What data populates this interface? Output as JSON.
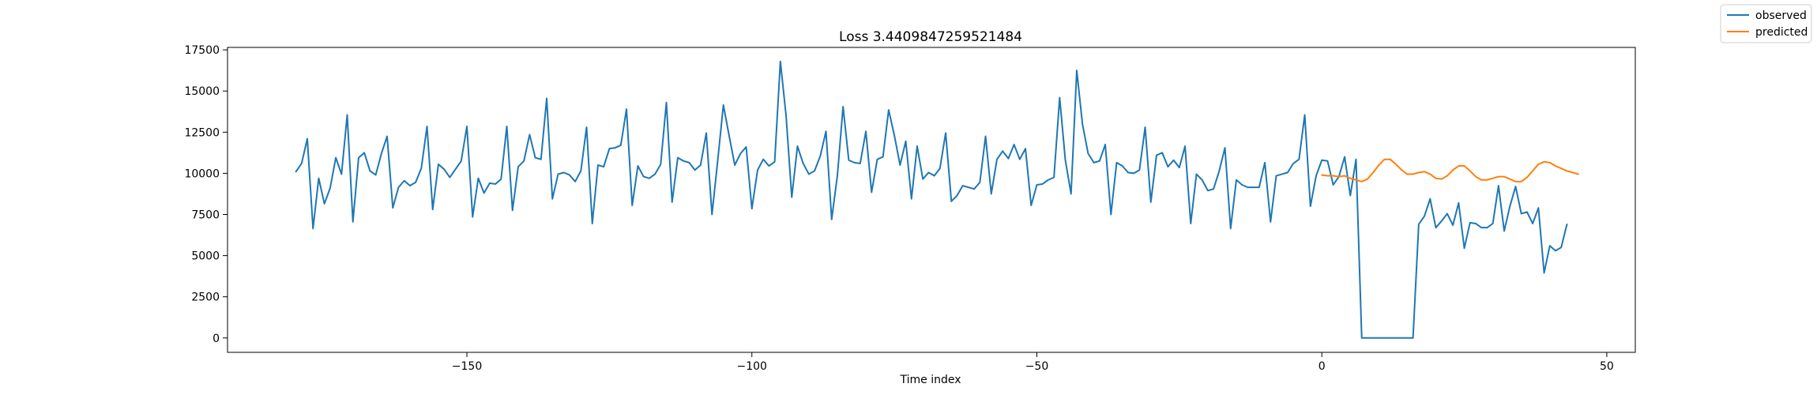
{
  "chart_data": {
    "type": "line",
    "title": "Loss 3.4409847259521484",
    "xlabel": "Time index",
    "ylabel": "",
    "xlim": [
      -192,
      55
    ],
    "ylim": [
      -875,
      17650
    ],
    "xticks": [
      -150,
      -100,
      -50,
      0,
      50
    ],
    "xtick_labels": [
      "−150",
      "−100",
      "−50",
      "0",
      "50"
    ],
    "yticks": [
      0,
      2500,
      5000,
      7500,
      10000,
      12500,
      15000,
      17500
    ],
    "ytick_labels": [
      "0",
      "2500",
      "5000",
      "7500",
      "10000",
      "12500",
      "15000",
      "17500"
    ],
    "grid": false,
    "legend_position": "upper-right-outside",
    "series": [
      {
        "name": "observed",
        "color": "#1f77b4",
        "x_start": -180,
        "values": [
          10100,
          10600,
          12100,
          6650,
          9700,
          8150,
          9100,
          10950,
          9950,
          13550,
          7050,
          10950,
          11250,
          10150,
          9900,
          11200,
          12250,
          7900,
          9150,
          9550,
          9250,
          9450,
          10300,
          12850,
          7800,
          10550,
          10250,
          9750,
          10250,
          10750,
          12850,
          7350,
          9700,
          8800,
          9400,
          9350,
          9650,
          12850,
          7750,
          10400,
          10750,
          12350,
          10950,
          10850,
          14550,
          8450,
          9950,
          10050,
          9900,
          9500,
          10150,
          12800,
          6950,
          10500,
          10400,
          11500,
          11550,
          11700,
          13900,
          8050,
          10450,
          9800,
          9700,
          9950,
          10550,
          14300,
          8250,
          10950,
          10750,
          10650,
          10200,
          10500,
          12450,
          7500,
          10750,
          14150,
          12300,
          10500,
          11200,
          11600,
          7850,
          10200,
          10850,
          10450,
          10700,
          16800,
          13500,
          8550,
          11650,
          10600,
          9950,
          10150,
          11050,
          12550,
          7200,
          9850,
          14050,
          10800,
          10650,
          10600,
          12550,
          8850,
          10850,
          11000,
          13850,
          12300,
          10500,
          11950,
          8450,
          11650,
          9650,
          10050,
          9850,
          10300,
          12450,
          8300,
          8650,
          9250,
          9150,
          9050,
          9450,
          12250,
          8750,
          10850,
          11350,
          10900,
          11750,
          10850,
          11500,
          8050,
          9300,
          9350,
          9600,
          9750,
          14600,
          10800,
          8750,
          16250,
          13000,
          11200,
          10650,
          10750,
          11750,
          7500,
          10650,
          10450,
          10050,
          10000,
          10200,
          12800,
          8250,
          11100,
          11250,
          10400,
          10800,
          10350,
          11650,
          6950,
          9950,
          9600,
          8950,
          9050,
          10150,
          11550,
          6650,
          9600,
          9300,
          9150,
          9150,
          9150,
          10650,
          7050,
          9850,
          9950,
          10050,
          10600,
          10850,
          13550,
          8000,
          9850,
          10800,
          10750,
          9300,
          9800,
          11000,
          8650,
          10850,
          0,
          0,
          0,
          0,
          0,
          0,
          0,
          0,
          0,
          0,
          6900,
          7400,
          8450,
          6700,
          7100,
          7550,
          6850,
          8200,
          5450,
          7000,
          6950,
          6700,
          6700,
          6950,
          9250,
          6500,
          8000,
          9200,
          7550,
          7650,
          6950,
          7900,
          3950,
          5600,
          5300,
          5500,
          6900
        ]
      },
      {
        "name": "predicted",
        "color": "#ff7f0e",
        "x_start": 0,
        "values": [
          9900,
          9850,
          9850,
          9800,
          9850,
          9700,
          9600,
          9500,
          9650,
          10050,
          10500,
          10850,
          10850,
          10550,
          10200,
          9950,
          9950,
          10050,
          10100,
          9950,
          9700,
          9650,
          9850,
          10200,
          10450,
          10450,
          10150,
          9800,
          9600,
          9600,
          9700,
          9800,
          9800,
          9650,
          9500,
          9500,
          9750,
          10150,
          10550,
          10700,
          10650,
          10450,
          10300,
          10150,
          10050,
          9950
        ]
      }
    ]
  }
}
